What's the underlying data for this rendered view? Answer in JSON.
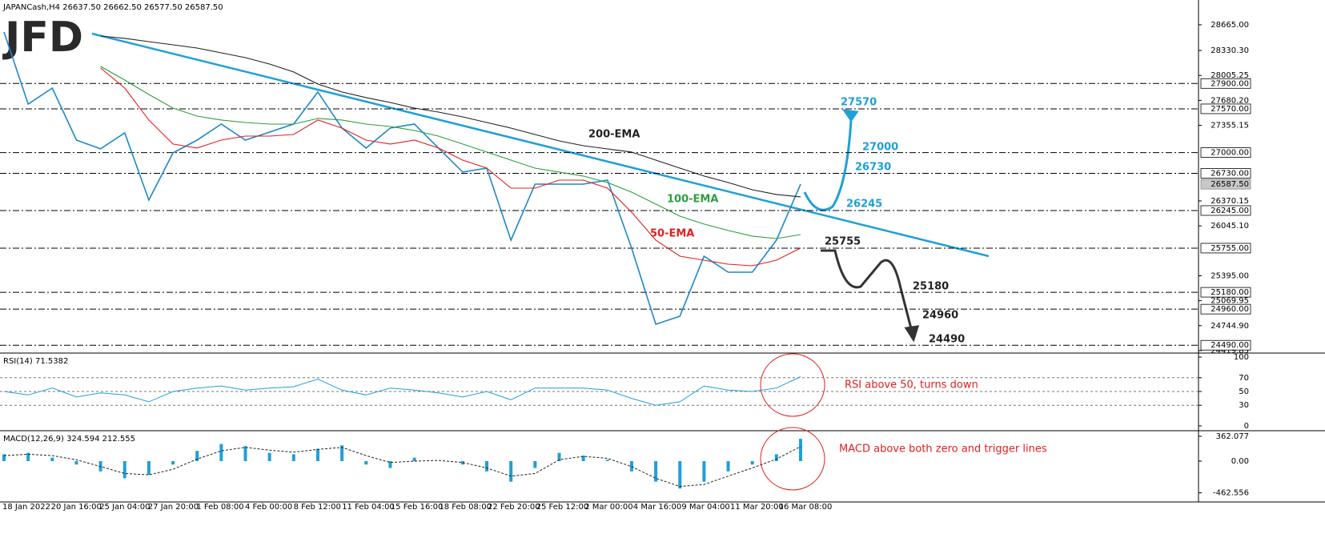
{
  "chart_data": [
    {
      "type": "line",
      "title": "JAPANCash,H4 26637.50 26662.50 26577.50 26587.50",
      "logo": "JFD",
      "xlabels": [
        "18 Jan 2022",
        "20 Jan 16:00",
        "25 Jan 04:00",
        "27 Jan 20:00",
        "1 Feb 08:00",
        "4 Feb 00:00",
        "8 Feb 12:00",
        "11 Feb 04:00",
        "15 Feb 16:00",
        "18 Feb 08:00",
        "22 Feb 20:00",
        "25 Feb 12:00",
        "2 Mar 00:00",
        "4 Mar 16:00",
        "9 Mar 04:00",
        "11 Mar 20:00",
        "16 Mar 08:00"
      ],
      "ylim": [
        24388,
        28988
      ],
      "yticks": [
        {
          "value": 28665,
          "label": "28665.00"
        },
        {
          "value": 28330.3,
          "label": "28330.30"
        },
        {
          "value": 28005.25,
          "label": "28005.25"
        },
        {
          "value": 27680.2,
          "label": "27680.20"
        },
        {
          "value": 27355.15,
          "label": "27355.15"
        },
        {
          "value": 26370.15,
          "label": "26370.15"
        },
        {
          "value": 26045.1,
          "label": "26045.10"
        },
        {
          "value": 25395,
          "label": "25395.00"
        },
        {
          "value": 25069.95,
          "label": "25069.95"
        },
        {
          "value": 24744.9,
          "label": "24744.90"
        },
        {
          "value": 24419.85,
          "label": "24419.85"
        }
      ],
      "levels": [
        {
          "value": 27900,
          "label": "27900.00"
        },
        {
          "value": 27570,
          "label": "27570.00"
        },
        {
          "value": 27000,
          "label": "27000.00"
        },
        {
          "value": 26730,
          "label": "26730.00"
        },
        {
          "value": 26245,
          "label": "26245.00"
        },
        {
          "value": 25755,
          "label": "25755.00"
        },
        {
          "value": 25180,
          "label": "25180.00"
        },
        {
          "value": 24960,
          "label": "24960.00"
        },
        {
          "value": 24490,
          "label": "24490.00"
        }
      ],
      "current": {
        "value": 26587.5,
        "label": "26587.50"
      },
      "targets": [
        27570,
        27000,
        26730,
        26245,
        25755,
        25180,
        24960,
        24490
      ],
      "series": [
        {
          "color": "#1e88c8",
          "values": [
            28571,
            27632,
            27841,
            27163,
            27049,
            27257,
            26381,
            26996,
            27163,
            27372,
            27163,
            27267,
            27372,
            27789,
            27319,
            27059,
            27319,
            27372,
            27059,
            26746,
            26798,
            25859,
            26589,
            26589,
            26589,
            26641,
            25755,
            24764,
            24868,
            25650,
            25441,
            25441,
            25859,
            26588
          ]
        },
        {
          "name": "200-EMA",
          "color": "#222222",
          "values": [
            null,
            null,
            null,
            null,
            28519,
            28488,
            28446,
            28404,
            28362,
            28300,
            28237,
            28154,
            28050,
            27893,
            27789,
            27716,
            27653,
            27580,
            27528,
            27465,
            27392,
            27319,
            27236,
            27152,
            27090,
            27048,
            27007,
            26902,
            26798,
            26694,
            26610,
            26516,
            26454,
            26423
          ]
        },
        {
          "name": "100-EMA",
          "color": "#2e9e3e",
          "values": [
            null,
            null,
            null,
            null,
            28123,
            27945,
            27757,
            27580,
            27476,
            27424,
            27392,
            27371,
            27371,
            27445,
            27424,
            27371,
            27340,
            27288,
            27215,
            27111,
            27007,
            26902,
            26798,
            26746,
            26694,
            26610,
            26485,
            26329,
            26172,
            26068,
            25985,
            25912,
            25880,
            25932
          ]
        },
        {
          "name": "50-EMA",
          "color": "#e02020",
          "values": [
            null,
            null,
            null,
            null,
            28102,
            27841,
            27424,
            27111,
            27059,
            27163,
            27215,
            27215,
            27236,
            27424,
            27319,
            27163,
            27111,
            27163,
            27059,
            26902,
            26798,
            26537,
            26537,
            26641,
            26641,
            26537,
            26224,
            25859,
            25650,
            25598,
            25546,
            25525,
            25598,
            25755
          ]
        }
      ]
    },
    {
      "type": "rsi",
      "title": "RSI(14) 71.5382",
      "ylim": [
        0,
        100
      ],
      "yticks": [
        100,
        70,
        50,
        30,
        0
      ],
      "levels": [
        70,
        50,
        30
      ],
      "color": "#1ea0d8",
      "values": [
        50,
        45,
        55,
        42,
        48,
        45,
        35,
        50,
        55,
        58,
        52,
        55,
        57,
        68,
        52,
        45,
        55,
        52,
        48,
        42,
        50,
        38,
        55,
        55,
        55,
        52,
        40,
        30,
        35,
        58,
        52,
        50,
        55,
        71.5
      ],
      "note": "RSI above 50, turns down"
    },
    {
      "type": "macd",
      "title": "MACD(12,26,9) 324.594 212.555",
      "ylim": [
        -596,
        420
      ],
      "yticks": [
        362.077,
        {
          "value": 0,
          "label": "0.00"
        },
        -462.556
      ],
      "series": [
        {
          "color": "#1ea0d8",
          "values": [
            100,
            120,
            50,
            -50,
            -150,
            -250,
            -200,
            -50,
            150,
            250,
            220,
            120,
            100,
            180,
            230,
            -50,
            -100,
            50,
            0,
            -50,
            -150,
            -300,
            -100,
            120,
            80,
            20,
            -150,
            -300,
            -400,
            -300,
            -150,
            -50,
            100,
            325
          ]
        },
        {
          "color": "#222222",
          "values": [
            80,
            100,
            80,
            20,
            -80,
            -180,
            -200,
            -120,
            30,
            150,
            200,
            160,
            130,
            170,
            200,
            80,
            -20,
            0,
            10,
            -20,
            -100,
            -220,
            -180,
            20,
            70,
            40,
            -80,
            -250,
            -370,
            -340,
            -220,
            -100,
            30,
            213
          ]
        }
      ],
      "note": "MACD above both zero and trigger lines"
    }
  ]
}
